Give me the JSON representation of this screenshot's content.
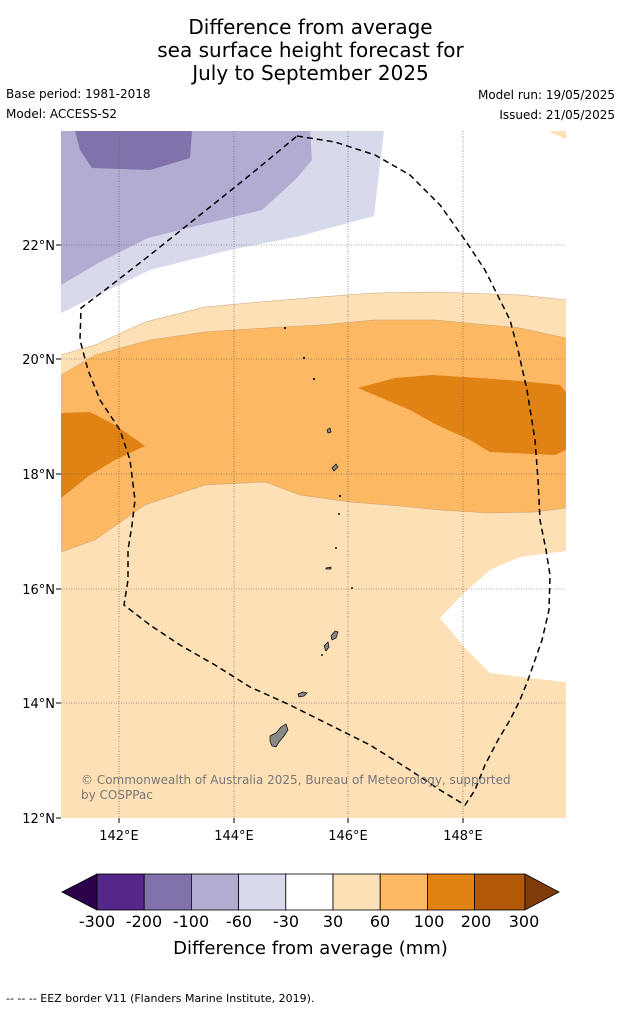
{
  "title": {
    "line1": "Difference from average",
    "line2": "sea surface height forecast for",
    "line3": "July to September 2025"
  },
  "meta": {
    "base_period": "Base period: 1981-2018",
    "model": "Model: ACCESS-S2",
    "model_run": "Model run: 19/05/2025",
    "issued": "Issued: 21/05/2025"
  },
  "map": {
    "lat_labels": [
      "22°N",
      "20°N",
      "18°N",
      "16°N",
      "14°N",
      "12°N"
    ],
    "lon_labels": [
      "142°E",
      "144°E",
      "146°E",
      "148°E"
    ],
    "copyright": "© Commonwealth of Australia 2025, Bureau of Meteorology, supported",
    "copyright2": "by COSPPac"
  },
  "colorbar": {
    "title": "Difference from average (mm)",
    "ticks": [
      "-300",
      "-200",
      "-100",
      "-60",
      "-30",
      "30",
      "60",
      "100",
      "200",
      "300"
    ],
    "colors": [
      "#2d004b",
      "#542788",
      "#8073ac",
      "#b2abd2",
      "#d8daeb",
      "#ffffff",
      "#fee0b6",
      "#fdb863",
      "#e08214",
      "#b35806",
      "#7f3b08"
    ]
  },
  "footnote": "--  --  -- EEZ border V11 (Flanders Marine Institute, 2019)."
}
